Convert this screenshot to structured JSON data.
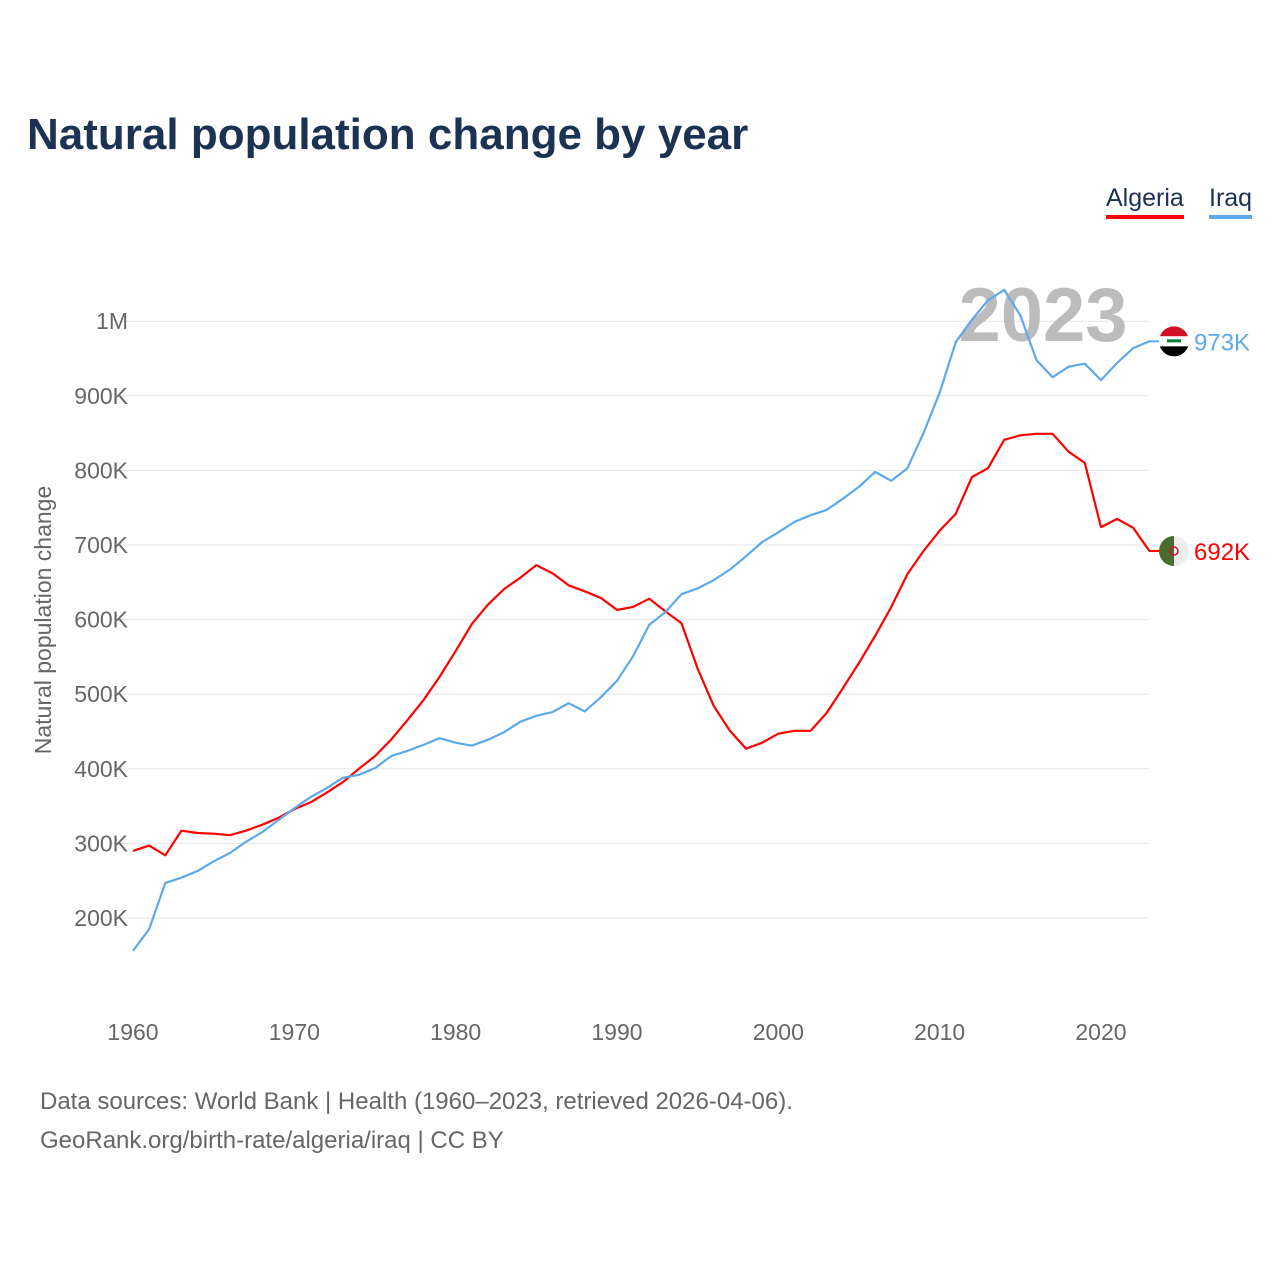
{
  "title": "Natural population change by year",
  "legend": [
    {
      "name": "Algeria",
      "color": "#ff0000"
    },
    {
      "name": "Iraq",
      "color": "#5ea8ec"
    }
  ],
  "footer": {
    "line1": "Data sources: World Bank | Health (1960–2023, retrieved 2026-04-06).",
    "line2": "GeoRank.org/birth-rate/algeria/iraq | CC BY"
  },
  "chart_data": {
    "type": "line",
    "title": "Natural population change by year",
    "xlabel": "",
    "ylabel": "Natural population change",
    "year_watermark": "2023",
    "xlim": [
      1960,
      2023
    ],
    "ylim": [
      100000,
      1050000
    ],
    "y_ticks": [
      200000,
      300000,
      400000,
      500000,
      600000,
      700000,
      800000,
      900000,
      1000000
    ],
    "y_tick_labels": [
      "200K",
      "300K",
      "400K",
      "500K",
      "600K",
      "700K",
      "800K",
      "900K",
      "1M"
    ],
    "x_ticks": [
      1960,
      1970,
      1980,
      1990,
      2000,
      2010,
      2020
    ],
    "x_tick_labels": [
      "1960",
      "1970",
      "1980",
      "1990",
      "2000",
      "2010",
      "2020"
    ],
    "grid": true,
    "legend_position": "top-right",
    "x": [
      1960,
      1961,
      1962,
      1963,
      1964,
      1965,
      1966,
      1967,
      1968,
      1969,
      1970,
      1971,
      1972,
      1973,
      1974,
      1975,
      1976,
      1977,
      1978,
      1979,
      1980,
      1981,
      1982,
      1983,
      1984,
      1985,
      1986,
      1987,
      1988,
      1989,
      1990,
      1991,
      1992,
      1993,
      1994,
      1995,
      1996,
      1997,
      1998,
      1999,
      2000,
      2001,
      2002,
      2003,
      2004,
      2005,
      2006,
      2007,
      2008,
      2009,
      2010,
      2011,
      2012,
      2013,
      2014,
      2015,
      2016,
      2017,
      2018,
      2019,
      2020,
      2021,
      2022,
      2023
    ],
    "series": [
      {
        "name": "Algeria",
        "color": "#ff0000",
        "end_label": "692K",
        "values": [
          290000,
          297000,
          284000,
          317000,
          314000,
          313000,
          311000,
          317000,
          325000,
          334000,
          346000,
          355000,
          368000,
          382000,
          400000,
          417000,
          439000,
          465000,
          492000,
          523000,
          558000,
          594000,
          620000,
          641000,
          656000,
          673000,
          662000,
          646000,
          638000,
          629000,
          613000,
          617000,
          628000,
          611000,
          595000,
          534000,
          484000,
          451000,
          427000,
          435000,
          447000,
          451000,
          451000,
          475000,
          508000,
          542000,
          578000,
          617000,
          661000,
          692000,
          719000,
          742000,
          791000,
          803000,
          841000,
          847000,
          849000,
          849000,
          825000,
          810000,
          724000,
          735000,
          723000,
          692000
        ]
      },
      {
        "name": "Iraq",
        "color": "#5ea8ec",
        "end_label": "973K",
        "values": [
          156000,
          185000,
          247000,
          254000,
          263000,
          276000,
          287000,
          302000,
          315000,
          331000,
          347000,
          362000,
          374000,
          388000,
          392000,
          401000,
          417000,
          424000,
          432000,
          441000,
          435000,
          431000,
          439000,
          449000,
          463000,
          471000,
          476000,
          488000,
          477000,
          496000,
          518000,
          551000,
          593000,
          610000,
          634000,
          642000,
          653000,
          667000,
          685000,
          704000,
          717000,
          731000,
          740000,
          747000,
          762000,
          778000,
          798000,
          786000,
          803000,
          850000,
          904000,
          972000,
          1002000,
          1028000,
          1042000,
          1008000,
          948000,
          925000,
          939000,
          943000,
          921000,
          944000,
          964000,
          973000
        ]
      }
    ]
  }
}
